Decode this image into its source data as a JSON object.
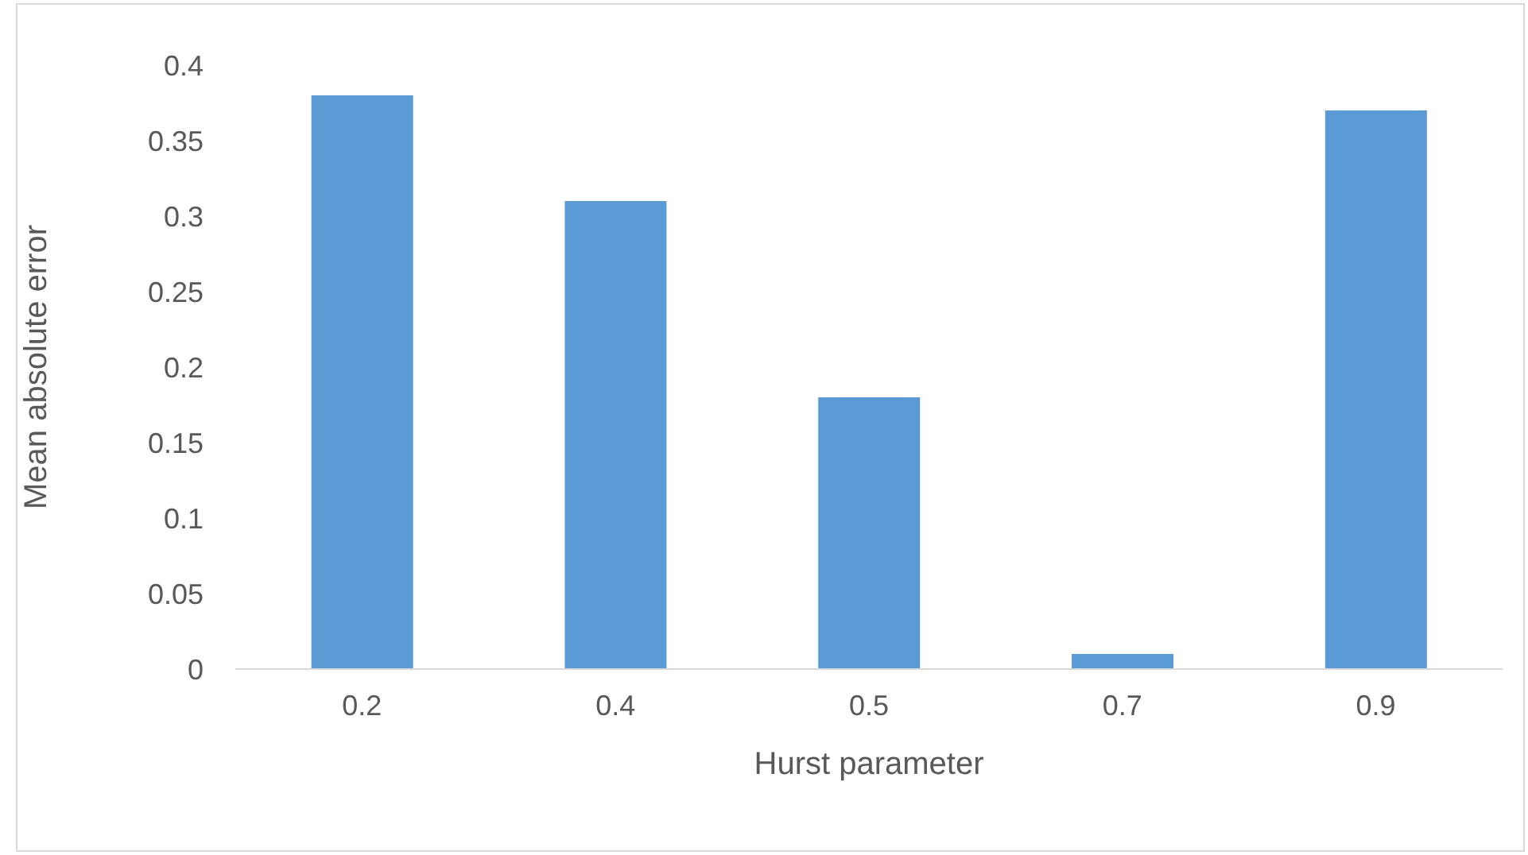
{
  "chart_data": {
    "type": "bar",
    "xlabel": "Hurst parameter",
    "ylabel": "Mean absolute error",
    "categories": [
      "0.2",
      "0.4",
      "0.5",
      "0.7",
      "0.9"
    ],
    "values": [
      0.38,
      0.31,
      0.18,
      0.01,
      0.37
    ],
    "color": "#5b9bd5",
    "ylim": [
      0,
      0.4
    ],
    "yticks": [
      0,
      0.05,
      0.1,
      0.15,
      0.2,
      0.25,
      0.3,
      0.35,
      0.4
    ],
    "grid": false,
    "legend": false
  }
}
